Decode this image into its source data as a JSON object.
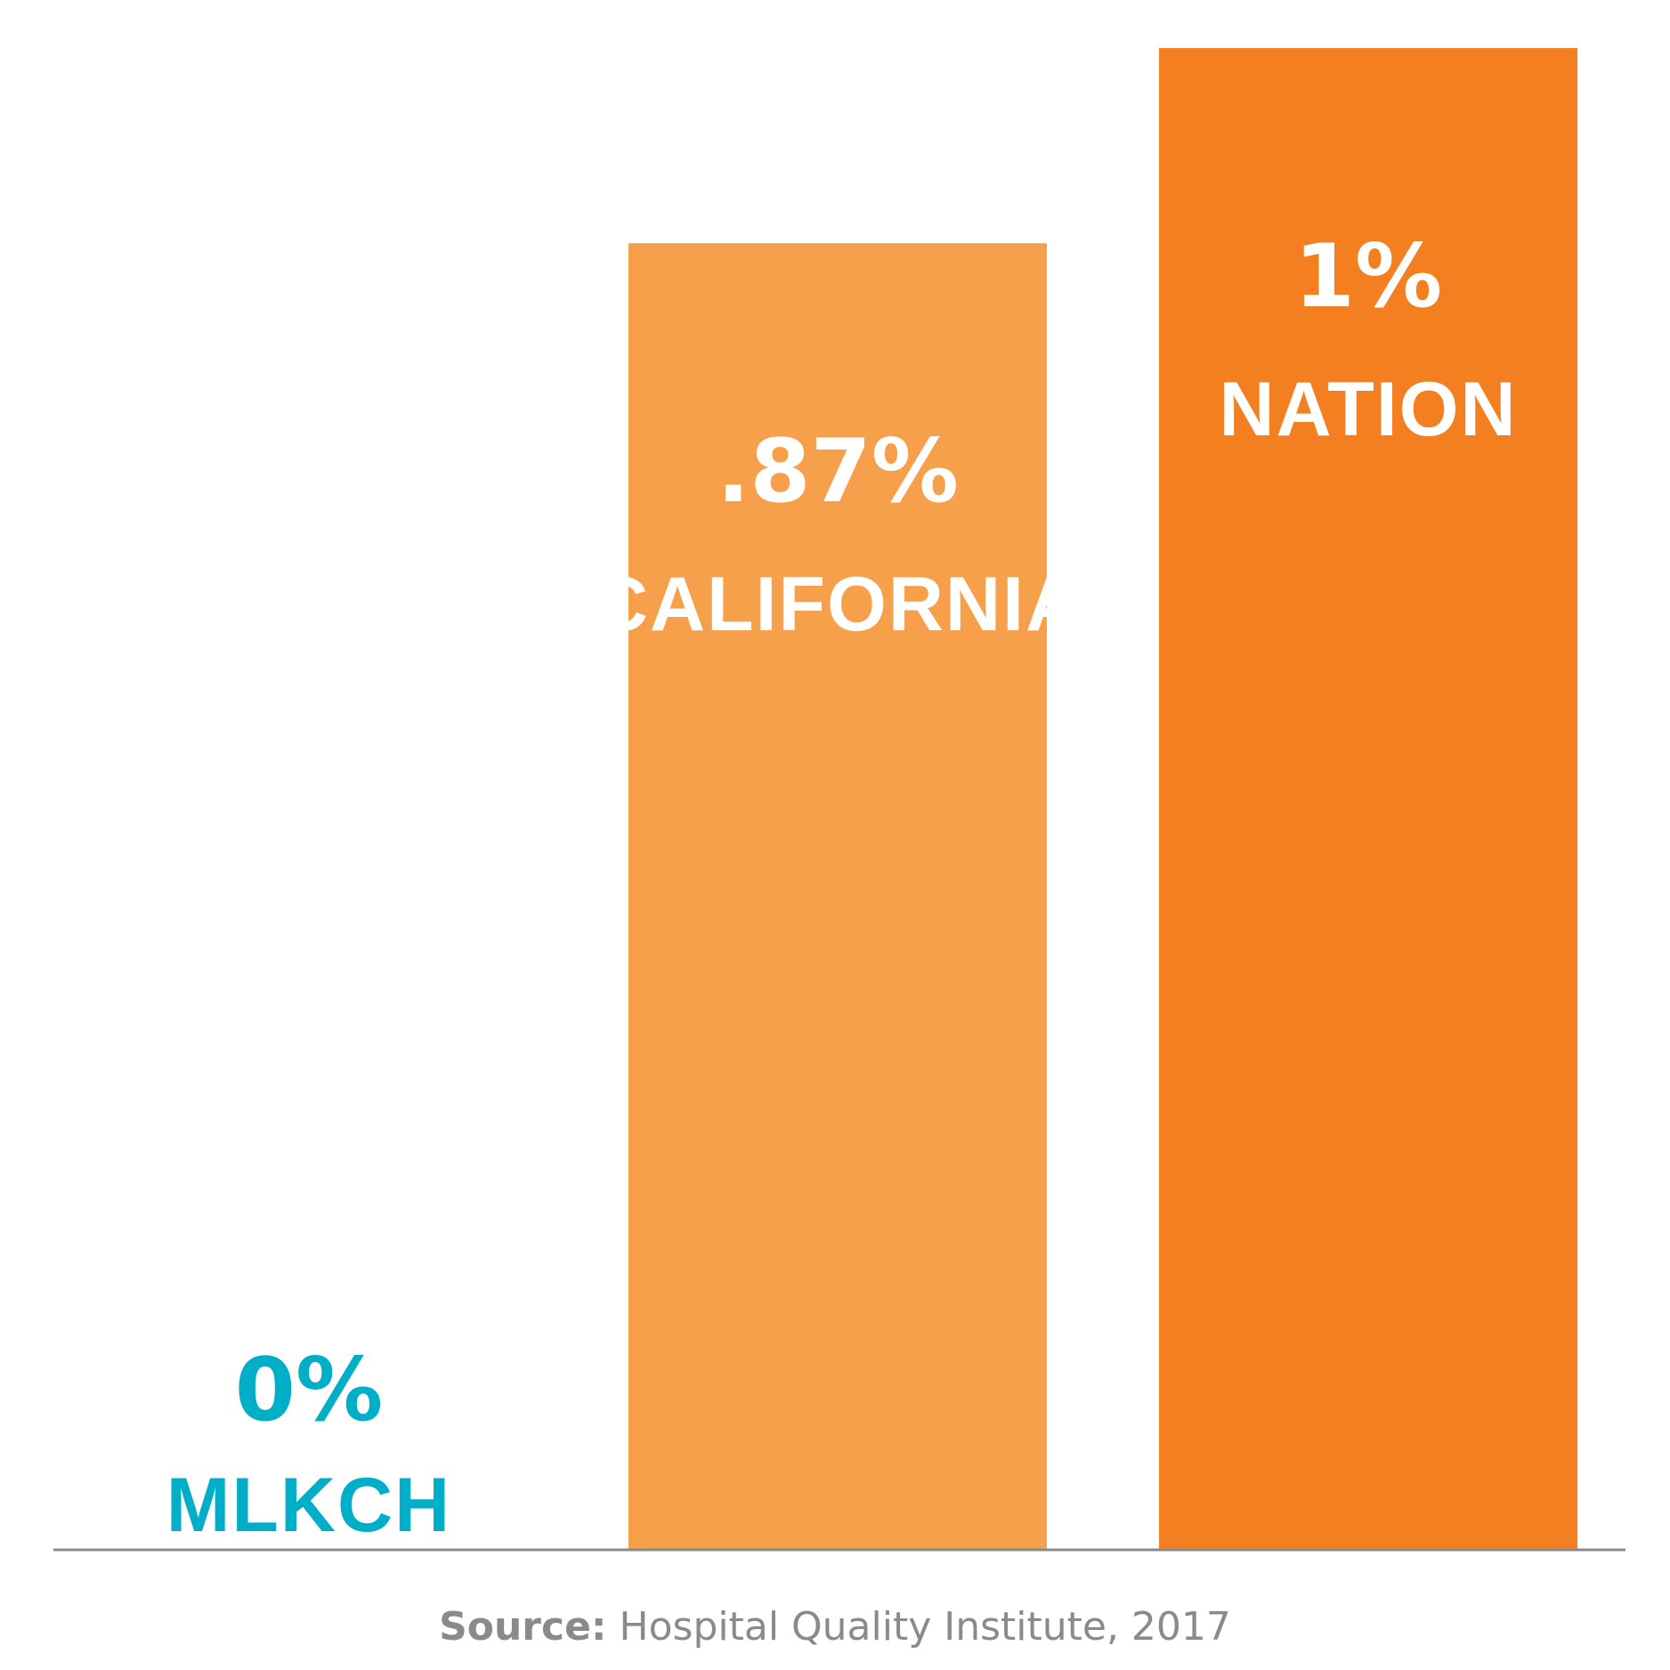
{
  "chart_data": {
    "type": "bar",
    "categories": [
      "MLKCH",
      "CALIFORNIA",
      "NATION"
    ],
    "values": [
      0,
      0.87,
      1
    ],
    "value_labels": [
      "0%",
      ".87%",
      "1%"
    ],
    "ylim": [
      0,
      1
    ],
    "grid": false,
    "legend": "none",
    "colors": {
      "MLKCH": "#00aec7",
      "CALIFORNIA": "#f7a04c",
      "NATION": "#f47f20",
      "baseline": "#8a8a8a",
      "label_on_bar": "#ffffff"
    }
  },
  "source": {
    "label": "Source:",
    "text": " Hospital Quality Institute, 2017"
  }
}
